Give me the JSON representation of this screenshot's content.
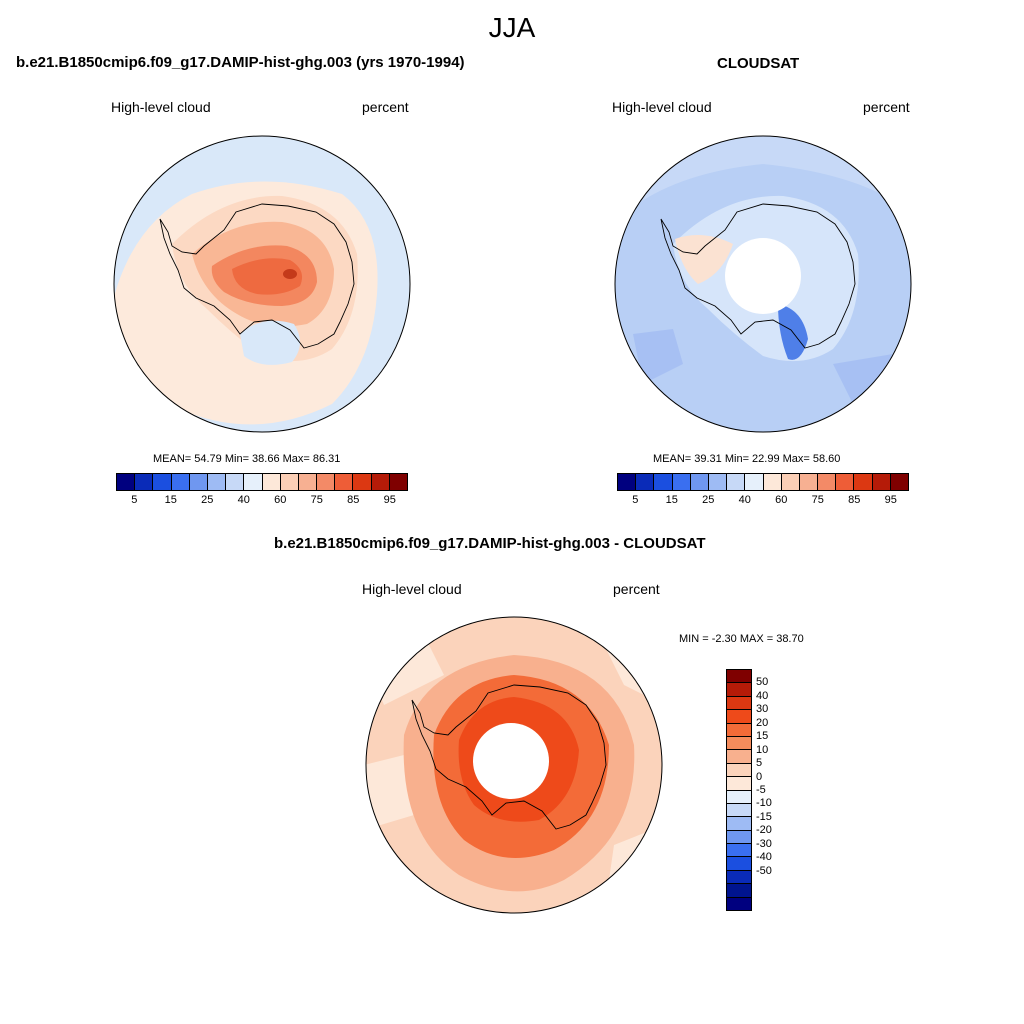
{
  "figure": {
    "season": "JJA"
  },
  "panel_model": {
    "title": "b.e21.B1850cmip6.f09_g17.DAMIP-hist-ghg.003 (yrs 1970-1994)",
    "variable": "High-level cloud",
    "units": "percent",
    "stats": "MEAN=  54.79  Min=  38.66  Max=  86.31"
  },
  "panel_obs": {
    "title": "CLOUDSAT",
    "variable": "High-level cloud",
    "units": "percent",
    "stats": "MEAN=  39.31  Min=  22.99  Max=  58.60"
  },
  "panel_diff": {
    "title": "b.e21.B1850cmip6.f09_g17.DAMIP-hist-ghg.003 - CLOUDSAT",
    "variable": "High-level cloud",
    "units": "percent",
    "stats": "MIN =  -2.30 MAX =  38.70"
  },
  "colorbar_main": {
    "colors": [
      "#00007f",
      "#0a2bb8",
      "#1b4fe0",
      "#3a6ff0",
      "#6f97f0",
      "#9ebbf4",
      "#c7d9f7",
      "#e6f0fb",
      "#fde8d9",
      "#fbcfb6",
      "#f7b092",
      "#f38a67",
      "#ee5d37",
      "#dc3812",
      "#b51b08",
      "#7f0000"
    ],
    "ticks": [
      "5",
      "15",
      "25",
      "40",
      "60",
      "75",
      "85",
      "95"
    ]
  },
  "colorbar_diff": {
    "colors": [
      "#7f0000",
      "#b51b08",
      "#dc3812",
      "#ee4a1a",
      "#f36b38",
      "#f58c5c",
      "#f8b08e",
      "#fbd3bb",
      "#fde8d9",
      "#e6f0fb",
      "#c7d9f7",
      "#9ebbf4",
      "#6f97f0",
      "#3a6ff0",
      "#1b4fe0",
      "#0a2bb8",
      "#00148f",
      "#00007f"
    ],
    "ticks": [
      "50",
      "40",
      "30",
      "20",
      "15",
      "10",
      "5",
      "0",
      "-5",
      "-10",
      "-15",
      "-20",
      "-30",
      "-40",
      "-50"
    ]
  }
}
